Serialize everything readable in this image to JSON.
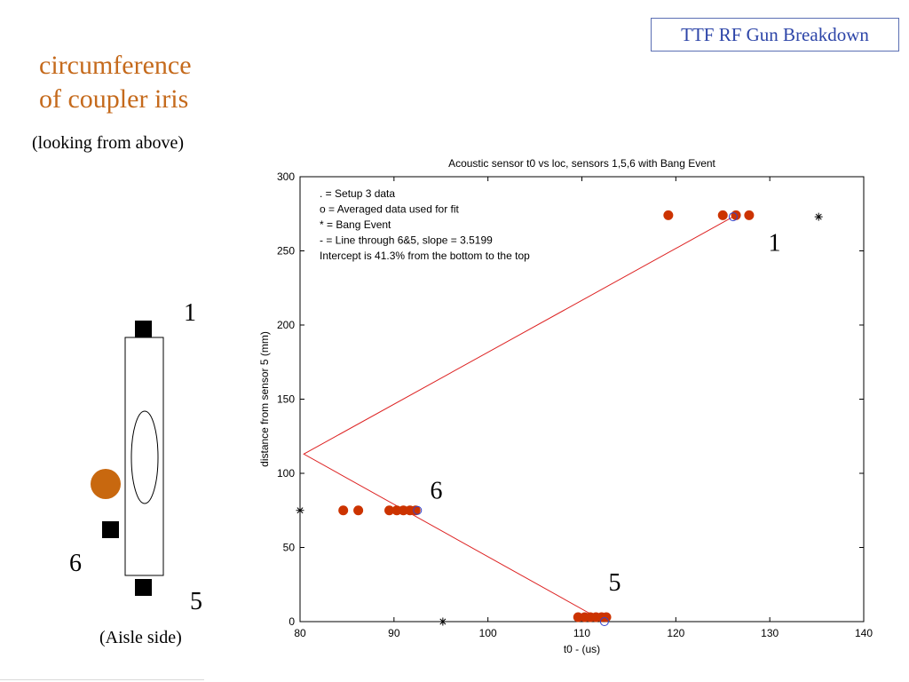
{
  "slide": {
    "badge": "TTF RF Gun Breakdown",
    "title_line1": "circumference",
    "title_line2": "of coupler iris",
    "subtitle": "(looking from above)",
    "aisle_label": "(Aisle side)"
  },
  "diagram": {
    "sensor_labels": [
      "1",
      "6",
      "5"
    ],
    "colors": {
      "sensor": "#000000",
      "bang_marker": "#c8680f",
      "outline": "#000000"
    }
  },
  "chart_data": {
    "type": "scatter",
    "title": "Acoustic sensor t0 vs loc, sensors 1,5,6 with Bang Event",
    "xlabel": "t0 - (us)",
    "ylabel": "distance from sensor 5 (mm)",
    "xlim": [
      80,
      140
    ],
    "ylim": [
      0,
      300
    ],
    "xticks": [
      80,
      90,
      100,
      110,
      120,
      130,
      140
    ],
    "yticks": [
      0,
      50,
      100,
      150,
      200,
      250,
      300
    ],
    "grid": false,
    "legend_lines": [
      ". = Setup 3 data",
      "o = Averaged data used for fit",
      "* = Bang Event",
      "- = Line through 6&5, slope = 3.5199",
      "Intercept is 41.3% from the bottom to the top"
    ],
    "legend_position": "top-left",
    "annotations": [
      {
        "text": "1",
        "x": 130.5,
        "y": 250
      },
      {
        "text": "6",
        "x": 94.5,
        "y": 83
      },
      {
        "text": "5",
        "x": 113.5,
        "y": 21
      }
    ],
    "series": [
      {
        "name": "Setup 3 data",
        "marker": "filled-circle",
        "color": "#cc3300",
        "points": [
          [
            119.2,
            274
          ],
          [
            125,
            274
          ],
          [
            126.4,
            274
          ],
          [
            127.8,
            274
          ],
          [
            84.6,
            75
          ],
          [
            86.2,
            75
          ],
          [
            89.5,
            75
          ],
          [
            90.3,
            75
          ],
          [
            91,
            75
          ],
          [
            91.7,
            75
          ],
          [
            92.3,
            75
          ],
          [
            109.6,
            3
          ],
          [
            110.3,
            3
          ],
          [
            110.9,
            3
          ],
          [
            111.5,
            3
          ],
          [
            112.1,
            3
          ],
          [
            112.6,
            3
          ]
        ]
      },
      {
        "name": "Averaged data used for fit",
        "marker": "open-circle",
        "color": "#3344cc",
        "points": [
          [
            126.1,
            273
          ],
          [
            92.5,
            75
          ],
          [
            112.4,
            0
          ]
        ]
      },
      {
        "name": "Bang Event",
        "marker": "asterisk",
        "color": "#000000",
        "points": [
          [
            135.2,
            273
          ],
          [
            80,
            75
          ],
          [
            95.2,
            0
          ]
        ]
      },
      {
        "name": "Line through 6&5",
        "marker": "line",
        "color": "#dd2222",
        "points": [
          [
            126.1,
            273
          ],
          [
            80.4,
            113
          ],
          [
            112.4,
            0
          ]
        ]
      }
    ]
  }
}
